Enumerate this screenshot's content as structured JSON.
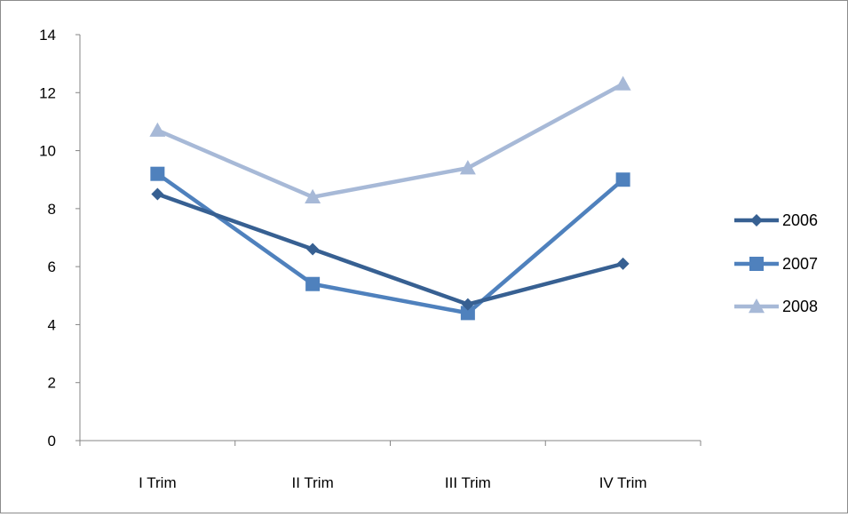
{
  "chart_data": {
    "type": "line",
    "title": "",
    "xlabel": "",
    "ylabel": "",
    "categories": [
      "I Trim",
      "II Trim",
      "III Trim",
      "IV Trim"
    ],
    "ylim": [
      0,
      14
    ],
    "yticks": [
      0,
      2,
      4,
      6,
      8,
      10,
      12,
      14
    ],
    "grid": false,
    "legend_position": "right",
    "series": [
      {
        "name": "2006",
        "values": [
          8.5,
          6.6,
          4.7,
          6.1
        ],
        "color": "#376092",
        "marker": "diamond"
      },
      {
        "name": "2007",
        "values": [
          9.2,
          5.4,
          4.4,
          9.0
        ],
        "color": "#4f81bd",
        "marker": "square"
      },
      {
        "name": "2008",
        "values": [
          10.7,
          8.4,
          9.4,
          12.3
        ],
        "color": "#a7b9d7",
        "marker": "triangle"
      }
    ]
  }
}
